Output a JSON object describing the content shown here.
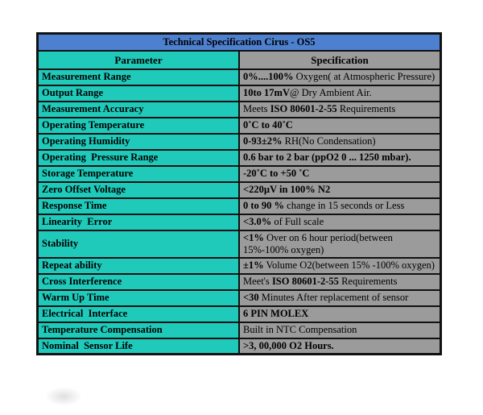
{
  "table": {
    "title": "Technical Specification Cirus - OS5",
    "columns": {
      "parameter": "Parameter",
      "specification": "Specification"
    },
    "colors": {
      "title_bg": "#4e80d0",
      "parameter_bg": "#1fcabb",
      "specification_bg": "#9b9b9b",
      "border": "#111111"
    },
    "rows": [
      {
        "parameter": "Measurement Range",
        "spec": [
          {
            "text": "0%....100%",
            "bold": true
          },
          {
            "text": " Oxygen( at Atmospheric Pressure)",
            "bold": false
          }
        ]
      },
      {
        "parameter": "Output Range",
        "spec": [
          {
            "text": "10to 17mV",
            "bold": true
          },
          {
            "text": "@ Dry Ambient Air.",
            "bold": false
          }
        ]
      },
      {
        "parameter": "Measurement Accuracy",
        "spec": [
          {
            "text": "Meets ",
            "bold": false
          },
          {
            "text": "ISO 80601-2-55",
            "bold": true
          },
          {
            "text": " Requirements",
            "bold": false
          }
        ]
      },
      {
        "parameter": "Operating Temperature",
        "spec": [
          {
            "text": "0˚C to 40˚C",
            "bold": true
          }
        ]
      },
      {
        "parameter": "Operating Humidity",
        "spec": [
          {
            "text": "0-93±2%",
            "bold": true
          },
          {
            "text": " RH(No Condensation)",
            "bold": false
          }
        ]
      },
      {
        "parameter": "Operating  Pressure Range",
        "spec": [
          {
            "text": "0.6 bar to 2 bar (ppO2 0 ... 1250 mbar).",
            "bold": true
          }
        ]
      },
      {
        "parameter": "Storage Temperature",
        "spec": [
          {
            "text": "-20˚C to +50 ˚C",
            "bold": true
          }
        ]
      },
      {
        "parameter": "Zero Offset Voltage",
        "spec": [
          {
            "text": "<220µV in 100% N2",
            "bold": true
          }
        ]
      },
      {
        "parameter": "Response Time",
        "spec": [
          {
            "text": "0 to 90 %",
            "bold": true
          },
          {
            "text": " change in 15 seconds or Less",
            "bold": false
          }
        ]
      },
      {
        "parameter": "Linearity  Error",
        "spec": [
          {
            "text": "<3.0%",
            "bold": true
          },
          {
            "text": " of Full scale",
            "bold": false
          }
        ]
      },
      {
        "parameter": "Stability",
        "spec": [
          {
            "text": "<1%",
            "bold": true
          },
          {
            "text": " Over on 6 hour period(between 15%-100% oxygen)",
            "bold": false
          }
        ]
      },
      {
        "parameter": "Repeat ability",
        "spec": [
          {
            "text": "±1%",
            "bold": true
          },
          {
            "text": " Volume O2(between 15% -100% oxygen)",
            "bold": false
          }
        ]
      },
      {
        "parameter": "Cross Interference",
        "spec": [
          {
            "text": "Meet's ",
            "bold": false
          },
          {
            "text": "ISO 80601-2-55",
            "bold": true
          },
          {
            "text": " Requirements",
            "bold": false
          }
        ]
      },
      {
        "parameter": "Warm Up Time",
        "spec": [
          {
            "text": "<30",
            "bold": true
          },
          {
            "text": " Minutes After replacement of sensor",
            "bold": false
          }
        ]
      },
      {
        "parameter": "Electrical  Interface",
        "spec": [
          {
            "text": "6 PIN MOLEX",
            "bold": true
          }
        ]
      },
      {
        "parameter": "Temperature Compensation",
        "spec": [
          {
            "text": "Built in NTC Compensation",
            "bold": false
          }
        ]
      },
      {
        "parameter": "Nominal  Sensor Life",
        "spec": [
          {
            "text": ">3, 00,000 O2 Hours.",
            "bold": true
          }
        ]
      }
    ]
  }
}
